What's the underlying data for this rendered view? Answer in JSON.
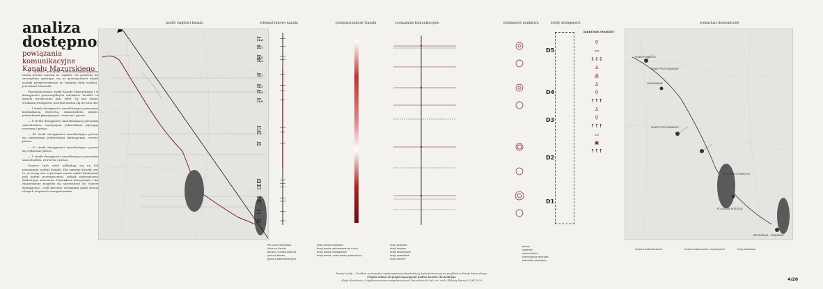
{
  "title": "analiza dostępności",
  "subtitle": "powiązania komunikacyjne Kanału Mazurskiego",
  "body": [
    "W analizie powiązań komunikacyjnych posłużono teorią Kevina Lyncha m. węzłów. Na potrzeby badań, szczególnie opierając się na powiązaniach miejskich, zostały przeprowadzone do badania dróg wodnej jaką jest Kanał Mazurski.",
    "Przeanalizowane węzły Kanału Mazurskiego i strefy dostępności poszczególnych odcinków. Wzdłuż całego Kanału wyznaczono pięć stref. Są one oznaczone środkami transportu, którymi można się do nich dostać.",
    "— I strefa dostępności umożliwiająca poruszanie się komunikacją zbiorową, samochodem, mniejszymi jednostkami pływającymi, rowerem i pieszo.",
    "— II strefa dostępności umożliwiająca poruszanie się samochodem, mniejszymi jednostkami pływającymi, rowerem i pieszo.",
    "— III strefa dostępności umożliwiająca poruszanie się mniejszymi jednostkami pływającymi, rowerem i pieszo.",
    "— IV strefa dostępności umożliwiająca poruszanie się wyłącznie pieszo.",
    "— V strefa dostępności umożliwiająca poruszanie się samochodem, rowerem i pieszo.",
    "Granice tych stref nakładają się na lokalne powiązania wzdłuż Kanału. Dla samego Kanału oznacza to, że mogą one w pewnym sensie nadać funkcjonalność pod kątem przeznaczeniu, jednak niekoniecznie w dosłownym znaczeniu. Największe korzystanie z Kanału Mazurskiego mogłoby się sprowadzać do 'sluzowania dostępności', czyli kreować odcinkami gdzie przenikają różnych stopniach zaangażowania."
  ],
  "columns": {
    "c1": "model ciągłości kanału",
    "c2": "schemat liniowy kanału",
    "c3": "przepuszczalność Kanału",
    "c4": "powiązania komunikacyjne",
    "c5": "dostępność punktowa",
    "c6": "strefy dostępności",
    "c7": "KIERUNEK PODRÓŻY",
    "c8": "scenariusz doświadczeń"
  },
  "km_labels": [
    "km 21,6",
    "km 20,7",
    "km 18,3",
    "km 18,1",
    "km 15,7",
    "km 14,7",
    "km 14,1",
    "km 12,9",
    "km 9,7",
    "km 9,5",
    "km 6,9",
    "km 5,5",
    "km 5,0",
    "km 4,5",
    "km 3,1",
    "km 2,6",
    "km 1,2",
    "km 0,0"
  ],
  "zones": [
    "D5",
    "D4",
    "D3",
    "D2",
    "D1"
  ],
  "legend_left": [
    "PIA punkt wejściowy",
    "śluza na Kanale",
    "bariera, ruina/ściana kła",
    "granica Kanału",
    "granica administracyjna"
  ],
  "legend_mid": [
    "drogi wodne żeglowne",
    "drogi wodne wyznaczone do ruchu",
    "drogi wodne nieżeglowne",
    "drogi wodne, szlak wodny potencjalny"
  ],
  "legend_right": [
    "drogi kolejowe",
    "drogi krajowe",
    "drogi ekspresowe",
    "drogi powiatowe",
    "drogi gminne"
  ],
  "legend_icons": [
    "pieszo",
    "rowerem",
    "samochodem",
    "komunikacja zbiorowa",
    "jednostką pływającą"
  ],
  "scenario_labels": [
    "PUNKT POWROTU",
    "PUNKT PRZYSTANKOWY",
    "ODKRYWANIE",
    "PUNKT PRZYSTANKOWY",
    "DZIŚ PUNKT POWROTU",
    "POLLEDNIE ROZSTAJE",
    "INFORMACJA - ODJĘZDNIE"
  ],
  "scenario_legend": [
    "miejsca doświadczenia",
    "miejsca odpoczynku i wypoczynku",
    "trasy widokowe"
  ],
  "footer": {
    "line1": "Pamięć wody — Problem zachowania i wykorzystania infrastruktury hydrotechnicznej na przykładzie Kanału Mazurskiego",
    "line2": "Projekt szlaku turystyki angażującej wzdłuż Kanału Mazurskiego",
    "line3": "Alicja Maculewicz // dyplomowa praca magisterska pod kierunkiem dr hab. inż. arch. Elżbiety Raszei // UAP 2020"
  },
  "page_number": "4/20",
  "colors": {
    "accent": "#7a1f1f",
    "map_bg": "#e6e6e3",
    "lake": "#5a5a5a"
  }
}
